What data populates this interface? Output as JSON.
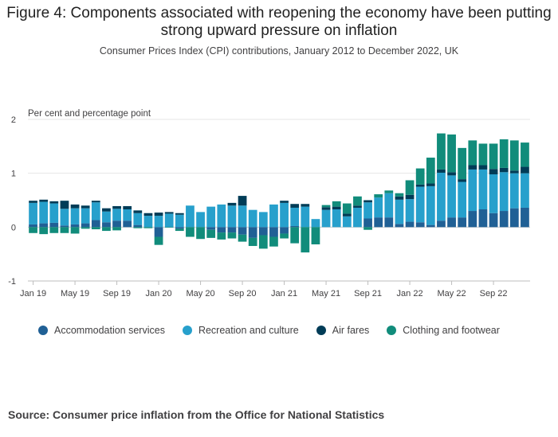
{
  "title": "Figure 4: Components associated with reopening the economy have been putting strong upward pressure on inflation",
  "subtitle": "Consumer Prices Index (CPI) contributions, January 2012 to December 2022, UK",
  "source": "Source: Consumer price inflation from the Office for National Statistics",
  "chart_data": {
    "type": "bar",
    "stacked": true,
    "title": "Figure 4: Components associated with reopening the economy have been putting strong upward pressure on inflation",
    "subtitle": "Consumer Prices Index (CPI) contributions, January 2012 to December 2022, UK",
    "ylabel": "Per cent and percentage point",
    "xlabel": "",
    "ylim": [
      -1,
      2
    ],
    "yticks": [
      2,
      1,
      0,
      -1
    ],
    "grid": true,
    "legend_position": "bottom",
    "categories": [
      "Jan 19",
      "Feb 19",
      "Mar 19",
      "Apr 19",
      "May 19",
      "Jun 19",
      "Jul 19",
      "Aug 19",
      "Sep 19",
      "Oct 19",
      "Nov 19",
      "Dec 19",
      "Jan 20",
      "Feb 20",
      "Mar 20",
      "Apr 20",
      "May 20",
      "Jun 20",
      "Jul 20",
      "Aug 20",
      "Sep 20",
      "Oct 20",
      "Nov 20",
      "Dec 20",
      "Jan 21",
      "Feb 21",
      "Mar 21",
      "Apr 21",
      "May 21",
      "Jun 21",
      "Jul 21",
      "Aug 21",
      "Sep 21",
      "Oct 21",
      "Nov 21",
      "Dec 21",
      "Jan 22",
      "Feb 22",
      "Mar 22",
      "Apr 22",
      "May 22",
      "Jun 22",
      "Jul 22",
      "Aug 22",
      "Sep 22",
      "Oct 22",
      "Nov 22",
      "Dec 22"
    ],
    "xtick_labels": [
      "Jan 19",
      "May 19",
      "Sep 19",
      "Jan 20",
      "May 20",
      "Sep 20",
      "Jan 21",
      "May 21",
      "Sep 21",
      "Jan 22",
      "May 22",
      "Sep 22"
    ],
    "series": [
      {
        "name": "Accommodation services",
        "color": "#206095",
        "values": [
          0.05,
          0.07,
          0.08,
          0.03,
          0.05,
          0.07,
          0.13,
          0.09,
          0.12,
          0.12,
          0.04,
          0.0,
          -0.18,
          0.0,
          -0.03,
          0.0,
          0.0,
          -0.05,
          -0.1,
          -0.1,
          -0.14,
          -0.2,
          -0.15,
          -0.18,
          -0.12,
          0.02,
          0.0,
          0.0,
          0.0,
          0.0,
          0.0,
          0.0,
          0.16,
          0.18,
          0.18,
          0.06,
          0.1,
          0.09,
          0.04,
          0.12,
          0.18,
          0.18,
          0.3,
          0.33,
          0.26,
          0.3,
          0.35,
          0.36
        ]
      },
      {
        "name": "Recreation and culture",
        "color": "#27a0cc",
        "values": [
          0.4,
          0.4,
          0.36,
          0.31,
          0.3,
          0.28,
          0.33,
          0.2,
          0.22,
          0.21,
          0.22,
          0.21,
          0.21,
          0.25,
          0.23,
          0.4,
          0.28,
          0.38,
          0.42,
          0.4,
          0.4,
          0.32,
          0.28,
          0.42,
          0.45,
          0.34,
          0.38,
          0.15,
          0.32,
          0.33,
          0.2,
          0.36,
          0.3,
          0.37,
          0.45,
          0.45,
          0.42,
          0.66,
          0.72,
          0.89,
          0.78,
          0.66,
          0.77,
          0.74,
          0.72,
          0.72,
          0.65,
          0.64
        ]
      },
      {
        "name": "Air fares",
        "color": "#003c57",
        "values": [
          0.04,
          0.04,
          0.04,
          0.15,
          0.07,
          0.05,
          0.03,
          0.06,
          0.05,
          0.06,
          0.05,
          0.05,
          0.06,
          0.03,
          0.03,
          0.0,
          0.0,
          0.0,
          0.0,
          0.05,
          0.18,
          0.0,
          0.0,
          0.0,
          0.04,
          0.07,
          0.05,
          0.0,
          0.05,
          0.05,
          0.05,
          0.04,
          0.04,
          0.0,
          0.0,
          0.06,
          0.08,
          0.04,
          0.05,
          0.06,
          0.06,
          0.05,
          0.08,
          0.08,
          0.1,
          0.08,
          0.05,
          0.12
        ]
      },
      {
        "name": "Clothing and footwear",
        "color": "#118c7b",
        "values": [
          -0.11,
          -0.13,
          -0.11,
          -0.11,
          -0.12,
          -0.03,
          -0.04,
          -0.07,
          -0.06,
          0.0,
          -0.02,
          -0.02,
          -0.15,
          -0.01,
          -0.04,
          -0.18,
          -0.22,
          -0.15,
          -0.13,
          -0.11,
          -0.13,
          -0.15,
          -0.25,
          -0.18,
          -0.09,
          -0.3,
          -0.47,
          -0.32,
          0.04,
          0.1,
          0.19,
          0.17,
          -0.05,
          0.06,
          0.05,
          0.06,
          0.27,
          0.3,
          0.48,
          0.67,
          0.7,
          0.58,
          0.46,
          0.4,
          0.47,
          0.53,
          0.56,
          0.45
        ]
      }
    ]
  }
}
